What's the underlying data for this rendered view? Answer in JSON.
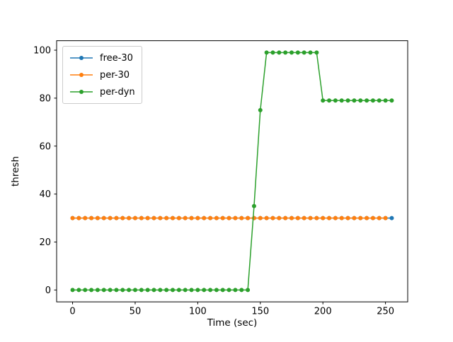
{
  "chart_data": {
    "type": "line",
    "title": "",
    "xlabel": "Time (sec)",
    "ylabel": "thresh",
    "xlim": [
      -12.75,
      267.75
    ],
    "ylim": [
      -4.95,
      103.95
    ],
    "xticks": [
      0,
      50,
      100,
      150,
      200,
      250
    ],
    "yticks": [
      0,
      20,
      40,
      60,
      80,
      100
    ],
    "grid": false,
    "legend_position": "upper left",
    "marker": "o",
    "background_color": "#ffffff",
    "axes_edge_color": "#000000",
    "series": [
      {
        "name": "free-30",
        "color": "#1f77b4",
        "x": [
          0,
          5,
          10,
          15,
          20,
          25,
          30,
          35,
          40,
          45,
          50,
          55,
          60,
          65,
          70,
          75,
          80,
          85,
          90,
          95,
          100,
          105,
          110,
          115,
          120,
          125,
          130,
          135,
          140,
          145,
          150,
          155,
          160,
          165,
          170,
          175,
          180,
          185,
          190,
          195,
          200,
          205,
          210,
          215,
          220,
          225,
          230,
          235,
          240,
          245,
          250,
          255
        ],
        "y": [
          30,
          30,
          30,
          30,
          30,
          30,
          30,
          30,
          30,
          30,
          30,
          30,
          30,
          30,
          30,
          30,
          30,
          30,
          30,
          30,
          30,
          30,
          30,
          30,
          30,
          30,
          30,
          30,
          30,
          30,
          30,
          30,
          30,
          30,
          30,
          30,
          30,
          30,
          30,
          30,
          30,
          30,
          30,
          30,
          30,
          30,
          30,
          30,
          30,
          30,
          30,
          30
        ]
      },
      {
        "name": "per-30",
        "color": "#ff7f0e",
        "x": [
          0,
          5,
          10,
          15,
          20,
          25,
          30,
          35,
          40,
          45,
          50,
          55,
          60,
          65,
          70,
          75,
          80,
          85,
          90,
          95,
          100,
          105,
          110,
          115,
          120,
          125,
          130,
          135,
          140,
          145,
          150,
          155,
          160,
          165,
          170,
          175,
          180,
          185,
          190,
          195,
          200,
          205,
          210,
          215,
          220,
          225,
          230,
          235,
          240,
          245,
          250
        ],
        "y": [
          30,
          30,
          30,
          30,
          30,
          30,
          30,
          30,
          30,
          30,
          30,
          30,
          30,
          30,
          30,
          30,
          30,
          30,
          30,
          30,
          30,
          30,
          30,
          30,
          30,
          30,
          30,
          30,
          30,
          30,
          30,
          30,
          30,
          30,
          30,
          30,
          30,
          30,
          30,
          30,
          30,
          30,
          30,
          30,
          30,
          30,
          30,
          30,
          30,
          30,
          30
        ]
      },
      {
        "name": "per-dyn",
        "color": "#2ca02c",
        "x": [
          0,
          5,
          10,
          15,
          20,
          25,
          30,
          35,
          40,
          45,
          50,
          55,
          60,
          65,
          70,
          75,
          80,
          85,
          90,
          95,
          100,
          105,
          110,
          115,
          120,
          125,
          130,
          135,
          140,
          145,
          150,
          155,
          160,
          165,
          170,
          175,
          180,
          185,
          190,
          195,
          200,
          205,
          210,
          215,
          220,
          225,
          230,
          235,
          240,
          245,
          250,
          255
        ],
        "y": [
          0,
          0,
          0,
          0,
          0,
          0,
          0,
          0,
          0,
          0,
          0,
          0,
          0,
          0,
          0,
          0,
          0,
          0,
          0,
          0,
          0,
          0,
          0,
          0,
          0,
          0,
          0,
          0,
          0,
          35,
          75,
          99,
          99,
          99,
          99,
          99,
          99,
          99,
          99,
          99,
          79,
          79,
          79,
          79,
          79,
          79,
          79,
          79,
          79,
          79,
          79,
          79
        ]
      }
    ]
  }
}
